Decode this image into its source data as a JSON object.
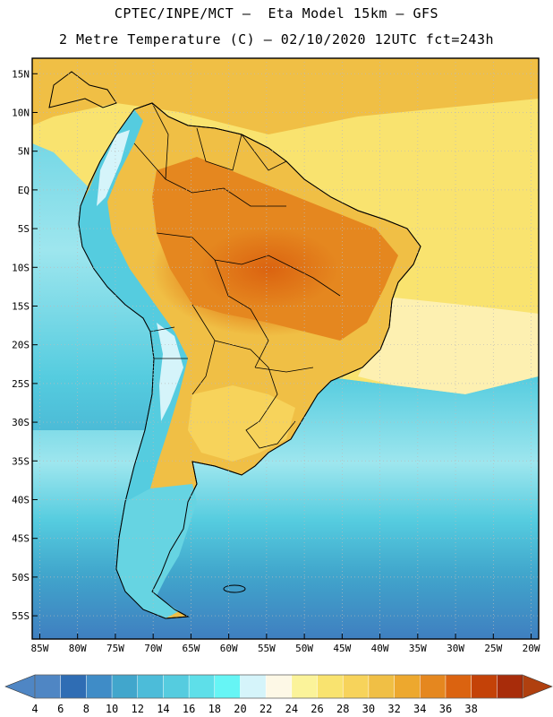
{
  "header": {
    "line1": "CPTEC/INPE/MCT –  Eta Model 15km – GFS",
    "line2": "2 Metre Temperature (C) – 02/10/2020 12UTC fct=243h"
  },
  "axes": {
    "lon_labels": [
      "85W",
      "80W",
      "75W",
      "70W",
      "65W",
      "60W",
      "55W",
      "50W",
      "45W",
      "40W",
      "35W",
      "30W",
      "25W",
      "20W"
    ],
    "lat_labels": [
      "15N",
      "10N",
      "5N",
      "EQ",
      "5S",
      "10S",
      "15S",
      "20S",
      "25S",
      "30S",
      "35S",
      "40S",
      "45S",
      "50S",
      "55S"
    ],
    "lon_range": [
      -86,
      -19
    ],
    "lat_range": [
      17,
      -58
    ]
  },
  "colorbar": {
    "labels": [
      "4",
      "6",
      "8",
      "10",
      "12",
      "14",
      "16",
      "18",
      "20",
      "22",
      "24",
      "26",
      "28",
      "30",
      "32",
      "34",
      "36",
      "38"
    ],
    "colors": [
      "#4f86c4",
      "#2f6db4",
      "#3f8cc7",
      "#41a6cc",
      "#4cbcd9",
      "#55ccdf",
      "#5edfe9",
      "#66f5f5",
      "#d5f4fa",
      "#fdf8e6",
      "#fbf39a",
      "#f9e36f",
      "#f7d35b",
      "#f0bf45",
      "#eda82e",
      "#e5871f",
      "#db6310",
      "#c44208",
      "#a82c0a"
    ],
    "under_color": "#4f86c4",
    "over_color": "#b0400f"
  },
  "map_colors": {
    "ocean_deep": "#3f7fc0",
    "ocean_mid": "#41a6cc",
    "ocean_cyan": "#55ccdf",
    "ocean_light": "#9ee6ee",
    "atl_warm": "#f9e36f",
    "atl_pale": "#fdf1b8",
    "caribbean": "#f0bf45",
    "land_base": "#f0bf45",
    "land_hot": "#e5871f",
    "land_hotter": "#db6310",
    "land_cool": "#f7d35b",
    "andes_cold": "#55ccdf",
    "andes_snow": "#d5f4fa",
    "patagonia": "#66d4e2",
    "border": "#000000",
    "grid": "#bbbbbb"
  }
}
